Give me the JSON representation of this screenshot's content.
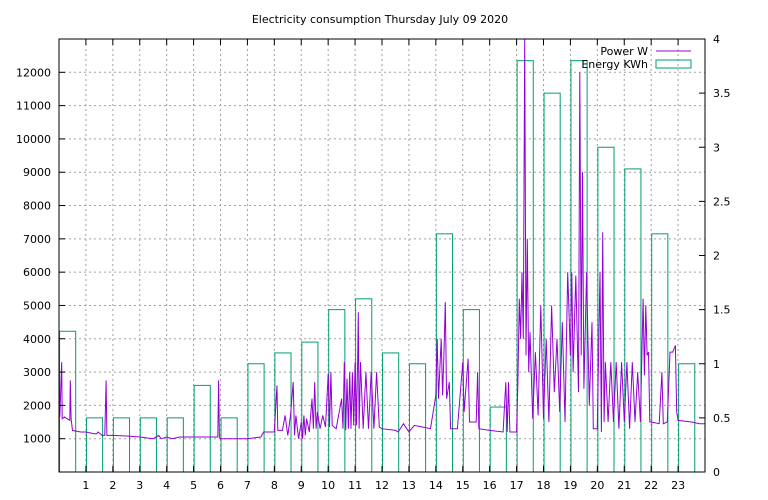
{
  "chart_data": {
    "type": "bar",
    "title": "Electricity consumption Thursday July 09 2020",
    "xlabel": "",
    "ylabel": "",
    "grid": true,
    "legend_position": "top-right",
    "x_axis": {
      "range": [
        0,
        24
      ],
      "ticks": [
        1,
        2,
        3,
        4,
        5,
        6,
        7,
        8,
        9,
        10,
        11,
        12,
        13,
        14,
        15,
        16,
        17,
        18,
        19,
        20,
        21,
        22,
        23
      ]
    },
    "y_axis_left": {
      "range": [
        0,
        13000
      ],
      "ticks": [
        1000,
        2000,
        3000,
        4000,
        5000,
        6000,
        7000,
        8000,
        9000,
        10000,
        11000,
        12000
      ],
      "unit_series": "Power W"
    },
    "y_axis_right": {
      "range": [
        0,
        4
      ],
      "ticks": [
        "0",
        "0.5",
        "1",
        "1.5",
        "2",
        "2.5",
        "3",
        "3.5",
        "4"
      ],
      "unit_series": "Energy KWh"
    },
    "series": [
      {
        "name": "Power W",
        "type": "line",
        "axis": "left",
        "color": "#9400d3",
        "points": [
          [
            0.0,
            3300
          ],
          [
            0.03,
            1650
          ],
          [
            0.1,
            3300
          ],
          [
            0.12,
            1600
          ],
          [
            0.2,
            1650
          ],
          [
            0.3,
            1600
          ],
          [
            0.4,
            1550
          ],
          [
            0.42,
            2750
          ],
          [
            0.45,
            1600
          ],
          [
            0.5,
            1250
          ],
          [
            0.8,
            1200
          ],
          [
            1.0,
            1200
          ],
          [
            1.3,
            1150
          ],
          [
            1.4,
            1150
          ],
          [
            1.45,
            1200
          ],
          [
            1.6,
            1100
          ],
          [
            1.7,
            1100
          ],
          [
            1.75,
            2750
          ],
          [
            1.78,
            1100
          ],
          [
            2.0,
            1100
          ],
          [
            2.5,
            1080
          ],
          [
            3.0,
            1050
          ],
          [
            3.5,
            1000
          ],
          [
            3.7,
            1100
          ],
          [
            3.8,
            1000
          ],
          [
            4.0,
            1050
          ],
          [
            4.2,
            1000
          ],
          [
            4.5,
            1050
          ],
          [
            5.0,
            1050
          ],
          [
            5.5,
            1050
          ],
          [
            5.9,
            1050
          ],
          [
            5.93,
            2750
          ],
          [
            5.96,
            1050
          ],
          [
            6.0,
            1000
          ],
          [
            6.5,
            1000
          ],
          [
            7.0,
            1000
          ],
          [
            7.5,
            1050
          ],
          [
            7.6,
            1200
          ],
          [
            8.0,
            1200
          ],
          [
            8.1,
            2600
          ],
          [
            8.13,
            1250
          ],
          [
            8.3,
            1250
          ],
          [
            8.4,
            1700
          ],
          [
            8.5,
            1100
          ],
          [
            8.6,
            1700
          ],
          [
            8.7,
            2700
          ],
          [
            8.75,
            1100
          ],
          [
            8.8,
            1700
          ],
          [
            8.9,
            1000
          ],
          [
            9.0,
            1500
          ],
          [
            9.05,
            1000
          ],
          [
            9.1,
            1700
          ],
          [
            9.15,
            1100
          ],
          [
            9.2,
            1600
          ],
          [
            9.3,
            1200
          ],
          [
            9.4,
            2200
          ],
          [
            9.45,
            1300
          ],
          [
            9.5,
            2700
          ],
          [
            9.55,
            1300
          ],
          [
            9.6,
            1800
          ],
          [
            9.7,
            1300
          ],
          [
            9.8,
            1700
          ],
          [
            9.9,
            1350
          ],
          [
            10.0,
            2950
          ],
          [
            10.05,
            1350
          ],
          [
            10.1,
            3000
          ],
          [
            10.15,
            1400
          ],
          [
            10.3,
            1300
          ],
          [
            10.5,
            2200
          ],
          [
            10.55,
            1300
          ],
          [
            10.6,
            3300
          ],
          [
            10.65,
            1250
          ],
          [
            10.7,
            2800
          ],
          [
            10.75,
            1300
          ],
          [
            10.8,
            3000
          ],
          [
            10.85,
            1300
          ],
          [
            10.9,
            3000
          ],
          [
            10.95,
            1400
          ],
          [
            11.0,
            3300
          ],
          [
            11.05,
            1400
          ],
          [
            11.1,
            3600
          ],
          [
            11.12,
            4800
          ],
          [
            11.15,
            1300
          ],
          [
            11.2,
            3300
          ],
          [
            11.3,
            1300
          ],
          [
            11.4,
            3000
          ],
          [
            11.5,
            1300
          ],
          [
            11.6,
            3000
          ],
          [
            11.7,
            1300
          ],
          [
            11.8,
            3000
          ],
          [
            11.9,
            1350
          ],
          [
            12.0,
            1300
          ],
          [
            12.5,
            1250
          ],
          [
            12.6,
            1200
          ],
          [
            12.8,
            1450
          ],
          [
            13.0,
            1200
          ],
          [
            13.2,
            1400
          ],
          [
            13.5,
            1350
          ],
          [
            13.8,
            1300
          ],
          [
            14.0,
            2300
          ],
          [
            14.05,
            4000
          ],
          [
            14.1,
            2200
          ],
          [
            14.2,
            4000
          ],
          [
            14.25,
            2300
          ],
          [
            14.3,
            3500
          ],
          [
            14.35,
            5100
          ],
          [
            14.4,
            2200
          ],
          [
            14.5,
            2700
          ],
          [
            14.55,
            1300
          ],
          [
            14.8,
            1300
          ],
          [
            15.0,
            3300
          ],
          [
            15.05,
            1800
          ],
          [
            15.2,
            3400
          ],
          [
            15.25,
            1500
          ],
          [
            15.5,
            1500
          ],
          [
            15.55,
            3000
          ],
          [
            15.6,
            1300
          ],
          [
            16.0,
            1250
          ],
          [
            16.5,
            1200
          ],
          [
            16.6,
            2700
          ],
          [
            16.65,
            1200
          ],
          [
            16.7,
            2700
          ],
          [
            16.75,
            1200
          ],
          [
            17.0,
            1200
          ],
          [
            17.05,
            2700
          ],
          [
            17.1,
            5200
          ],
          [
            17.15,
            4000
          ],
          [
            17.2,
            6000
          ],
          [
            17.25,
            4000
          ],
          [
            17.3,
            13000
          ],
          [
            17.35,
            3500
          ],
          [
            17.4,
            7000
          ],
          [
            17.45,
            3000
          ],
          [
            17.5,
            4200
          ],
          [
            17.6,
            1600
          ],
          [
            17.7,
            3600
          ],
          [
            17.8,
            1700
          ],
          [
            17.9,
            5000
          ],
          [
            18.0,
            1600
          ],
          [
            18.1,
            4000
          ],
          [
            18.2,
            1500
          ],
          [
            18.3,
            5000
          ],
          [
            18.4,
            2400
          ],
          [
            18.5,
            4000
          ],
          [
            18.6,
            1800
          ],
          [
            18.7,
            4500
          ],
          [
            18.8,
            1500
          ],
          [
            18.9,
            6000
          ],
          [
            19.0,
            3500
          ],
          [
            19.05,
            6000
          ],
          [
            19.1,
            3000
          ],
          [
            19.2,
            5900
          ],
          [
            19.3,
            2400
          ],
          [
            19.35,
            12000
          ],
          [
            19.4,
            3500
          ],
          [
            19.45,
            9000
          ],
          [
            19.5,
            2500
          ],
          [
            19.6,
            6000
          ],
          [
            19.7,
            2000
          ],
          [
            19.8,
            4500
          ],
          [
            19.85,
            1300
          ],
          [
            20.0,
            1300
          ],
          [
            20.1,
            6000
          ],
          [
            20.15,
            1200
          ],
          [
            20.2,
            7200
          ],
          [
            20.25,
            1500
          ],
          [
            20.3,
            3300
          ],
          [
            20.4,
            1500
          ],
          [
            20.5,
            3300
          ],
          [
            20.6,
            1500
          ],
          [
            20.7,
            3300
          ],
          [
            20.8,
            1300
          ],
          [
            20.9,
            3300
          ],
          [
            21.0,
            1500
          ],
          [
            21.1,
            3300
          ],
          [
            21.2,
            1300
          ],
          [
            21.3,
            3300
          ],
          [
            21.4,
            1500
          ],
          [
            21.5,
            3000
          ],
          [
            21.6,
            1500
          ],
          [
            21.7,
            5200
          ],
          [
            21.75,
            2900
          ],
          [
            21.8,
            5000
          ],
          [
            21.85,
            3500
          ],
          [
            21.9,
            3600
          ],
          [
            21.95,
            1500
          ],
          [
            22.0,
            1500
          ],
          [
            22.3,
            1450
          ],
          [
            22.4,
            3000
          ],
          [
            22.45,
            1450
          ],
          [
            22.6,
            1500
          ],
          [
            22.7,
            3600
          ],
          [
            22.8,
            3600
          ],
          [
            22.9,
            3800
          ],
          [
            22.95,
            1800
          ],
          [
            23.0,
            1550
          ],
          [
            23.5,
            1500
          ],
          [
            23.8,
            1450
          ],
          [
            24.0,
            1450
          ]
        ]
      },
      {
        "name": "Energy KWh",
        "type": "bar",
        "axis": "right",
        "color": "#009e73",
        "hours": [
          0,
          1,
          2,
          3,
          4,
          5,
          6,
          7,
          8,
          9,
          10,
          11,
          12,
          13,
          14,
          15,
          16,
          17,
          18,
          19,
          20,
          21,
          22,
          23
        ],
        "values": [
          1.3,
          0.5,
          0.5,
          0.5,
          0.5,
          0.8,
          0.5,
          1.0,
          1.1,
          1.2,
          1.5,
          1.6,
          1.1,
          1.0,
          2.2,
          1.5,
          0.6,
          3.8,
          3.5,
          3.8,
          3.0,
          2.8,
          2.2,
          1.0
        ]
      }
    ]
  }
}
